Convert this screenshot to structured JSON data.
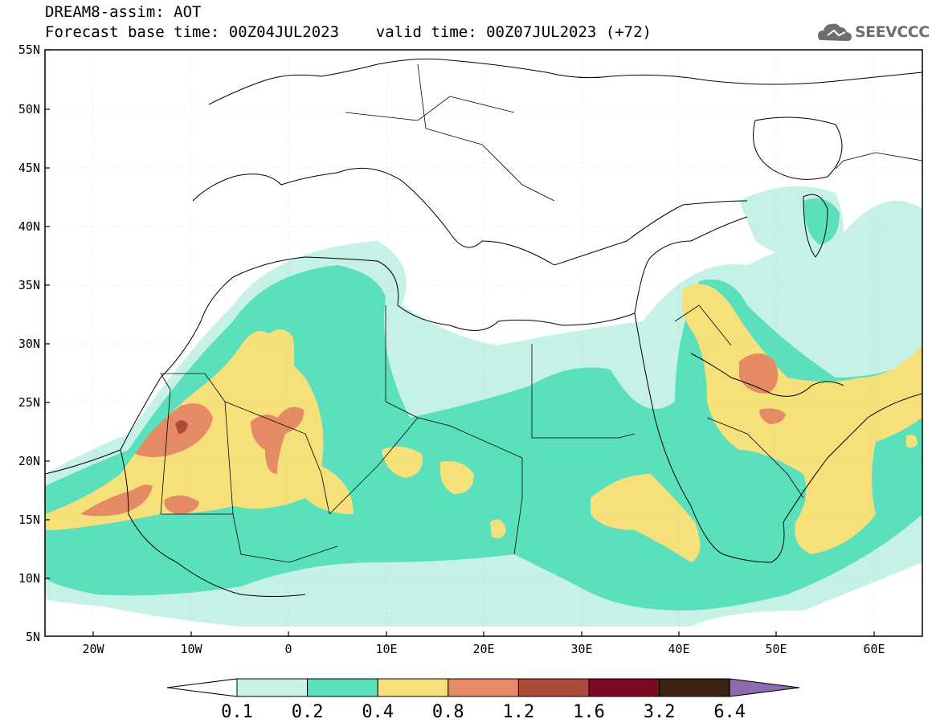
{
  "title": {
    "line1": "DREAM8-assim: AOT",
    "line2": "Forecast base time: 00Z04JUL2023    valid time: 00Z07JUL2023 (+72)"
  },
  "logo": {
    "text": "SEEVCCC",
    "icon": "cloud-icon"
  },
  "map": {
    "lat_labels": [
      "55N",
      "50N",
      "45N",
      "40N",
      "35N",
      "30N",
      "25N",
      "20N",
      "15N",
      "10N",
      "5N"
    ],
    "lon_labels": [
      "20W",
      "10W",
      "0",
      "10E",
      "20E",
      "30E",
      "40E",
      "50E",
      "60E"
    ]
  },
  "legend": {
    "labels": [
      "0.1",
      "0.2",
      "0.4",
      "0.8",
      "1.2",
      "1.6",
      "3.2",
      "6.4"
    ],
    "colors": [
      "#ffffff",
      "#c6f1e6",
      "#5ae0bc",
      "#f6e07a",
      "#e48b66",
      "#b04a38",
      "#7c0a22",
      "#3e2312",
      "#8c6cae"
    ]
  }
}
